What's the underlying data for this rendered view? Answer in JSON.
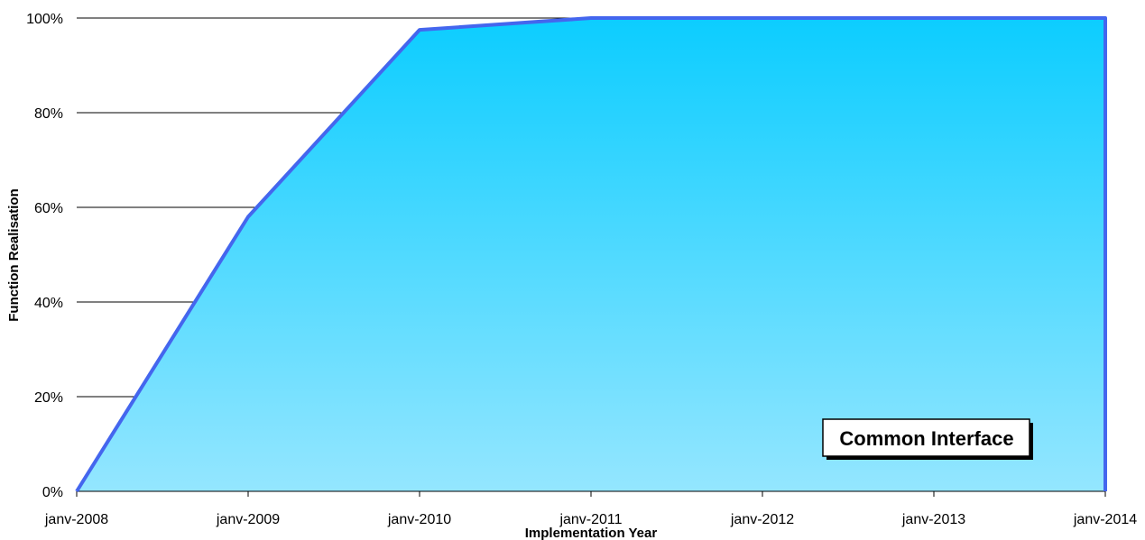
{
  "chart_data": {
    "type": "area",
    "title": "",
    "xlabel": "Implementation Year",
    "ylabel": "Function Realisation",
    "x": [
      "janv-2008",
      "janv-2009",
      "janv-2010",
      "janv-2011",
      "janv-2012",
      "janv-2013",
      "janv-2014"
    ],
    "series": [
      {
        "name": "Common Interface",
        "values": [
          0,
          58,
          97.5,
          100,
          100,
          100,
          100
        ]
      }
    ],
    "ylim": [
      0,
      100
    ],
    "y_ticks": [
      "0%",
      "20%",
      "40%",
      "60%",
      "80%",
      "100%"
    ],
    "grid": true,
    "legend": "bottom-right",
    "colors": {
      "fill_top": "#0ccdff",
      "fill_bottom": "#94e6ff",
      "line": "#4466ee"
    }
  }
}
